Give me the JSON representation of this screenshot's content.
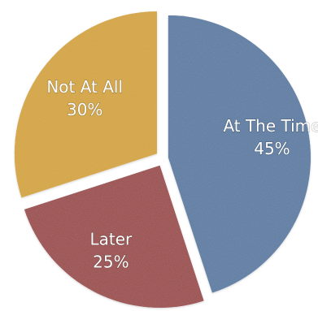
{
  "chart_data": {
    "type": "pie",
    "start_angle_deg": 0,
    "direction": "clockwise",
    "slices": [
      {
        "label": "At The Time",
        "value": 45,
        "value_label": "45%",
        "color": "#5f7fa6"
      },
      {
        "label": "Later",
        "value": 25,
        "value_label": "25%",
        "color": "#9f4f4f"
      },
      {
        "label": "Not At All",
        "value": 30,
        "value_label": "30%",
        "color": "#d8a840"
      }
    ]
  }
}
